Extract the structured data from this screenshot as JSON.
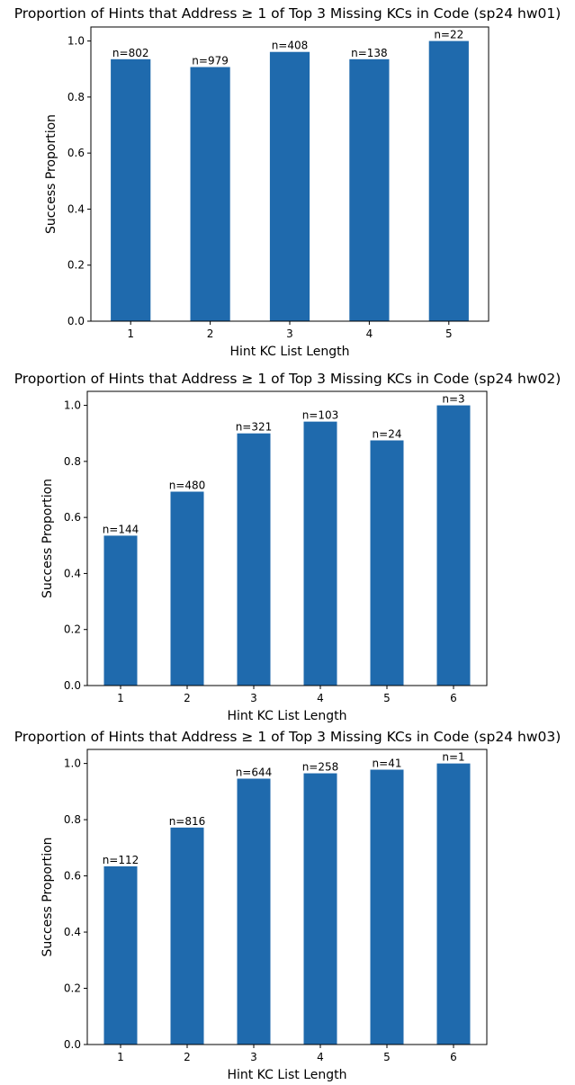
{
  "chart_data": [
    {
      "type": "bar",
      "title": "Proportion of Hints that Address ≥ 1 of Top 3 Missing KCs in Code (sp24 hw01)",
      "xlabel": "Hint KC List Length",
      "ylabel": "Success Proportion",
      "categories": [
        "1",
        "2",
        "3",
        "4",
        "5"
      ],
      "values": [
        0.935,
        0.907,
        0.961,
        0.935,
        1.0
      ],
      "bar_labels": [
        "n=802",
        "n=979",
        "n=408",
        "n=138",
        "n=22"
      ],
      "yticks": [
        "0.0",
        "0.2",
        "0.4",
        "0.6",
        "0.8",
        "1.0"
      ],
      "ylim": [
        0,
        1.05
      ],
      "grid": false,
      "color": "#1f6aad"
    },
    {
      "type": "bar",
      "title": "Proportion of Hints that Address ≥ 1 of Top 3 Missing KCs in Code (sp24 hw02)",
      "xlabel": "Hint KC List Length",
      "ylabel": "Success Proportion",
      "categories": [
        "1",
        "2",
        "3",
        "4",
        "5",
        "6"
      ],
      "values": [
        0.535,
        0.692,
        0.9,
        0.942,
        0.875,
        1.0
      ],
      "bar_labels": [
        "n=144",
        "n=480",
        "n=321",
        "n=103",
        "n=24",
        "n=3"
      ],
      "yticks": [
        "0.0",
        "0.2",
        "0.4",
        "0.6",
        "0.8",
        "1.0"
      ],
      "ylim": [
        0,
        1.05
      ],
      "grid": false,
      "color": "#1f6aad"
    },
    {
      "type": "bar",
      "title": "Proportion of Hints that Address ≥ 1 of Top 3 Missing KCs in Code (sp24 hw03)",
      "xlabel": "Hint KC List Length",
      "ylabel": "Success Proportion",
      "categories": [
        "1",
        "2",
        "3",
        "4",
        "5",
        "6"
      ],
      "values": [
        0.634,
        0.772,
        0.946,
        0.965,
        0.978,
        1.0
      ],
      "bar_labels": [
        "n=112",
        "n=816",
        "n=644",
        "n=258",
        "n=41",
        "n=1"
      ],
      "yticks": [
        "0.0",
        "0.2",
        "0.4",
        "0.6",
        "0.8",
        "1.0"
      ],
      "ylim": [
        0,
        1.05
      ],
      "grid": false,
      "color": "#1f6aad"
    }
  ]
}
